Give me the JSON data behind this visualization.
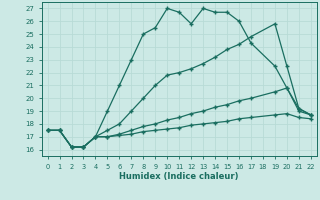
{
  "bg_color": "#cce9e5",
  "grid_color": "#b8dbd6",
  "line_color": "#1a6e60",
  "xlabel": "Humidex (Indice chaleur)",
  "xlim": [
    -0.5,
    22.5
  ],
  "ylim": [
    15.5,
    27.5
  ],
  "xticks": [
    0,
    1,
    2,
    3,
    4,
    5,
    6,
    7,
    8,
    9,
    10,
    11,
    12,
    13,
    14,
    15,
    16,
    17,
    18,
    19,
    20,
    21,
    22
  ],
  "yticks": [
    16,
    17,
    18,
    19,
    20,
    21,
    22,
    23,
    24,
    25,
    26,
    27
  ],
  "lines": [
    {
      "x": [
        0,
        1,
        2,
        3,
        4,
        5,
        6,
        7,
        8,
        9,
        10,
        11,
        12,
        13,
        14,
        15,
        16,
        17,
        19,
        20,
        21,
        22
      ],
      "y": [
        17.5,
        17.5,
        16.2,
        16.2,
        17.0,
        19.0,
        21.0,
        23.0,
        25.0,
        25.5,
        27.0,
        26.7,
        25.8,
        27.0,
        26.7,
        26.7,
        26.0,
        24.3,
        22.5,
        20.8,
        19.0,
        18.7
      ]
    },
    {
      "x": [
        0,
        1,
        2,
        3,
        4,
        5,
        6,
        7,
        8,
        9,
        10,
        11,
        12,
        13,
        14,
        15,
        16,
        17,
        19,
        20,
        21,
        22
      ],
      "y": [
        17.5,
        17.5,
        16.2,
        16.2,
        17.0,
        17.5,
        18.0,
        19.0,
        20.0,
        21.0,
        21.8,
        22.0,
        22.3,
        22.7,
        23.2,
        23.8,
        24.2,
        24.8,
        25.8,
        22.5,
        19.2,
        18.7
      ]
    },
    {
      "x": [
        0,
        1,
        2,
        3,
        4,
        5,
        6,
        7,
        8,
        9,
        10,
        11,
        12,
        13,
        14,
        15,
        16,
        17,
        19,
        20,
        21,
        22
      ],
      "y": [
        17.5,
        17.5,
        16.2,
        16.2,
        17.0,
        17.0,
        17.2,
        17.5,
        17.8,
        18.0,
        18.3,
        18.5,
        18.8,
        19.0,
        19.3,
        19.5,
        19.8,
        20.0,
        20.5,
        20.8,
        19.2,
        18.7
      ]
    },
    {
      "x": [
        0,
        1,
        2,
        3,
        4,
        5,
        6,
        7,
        8,
        9,
        10,
        11,
        12,
        13,
        14,
        15,
        16,
        17,
        19,
        20,
        21,
        22
      ],
      "y": [
        17.5,
        17.5,
        16.2,
        16.2,
        17.0,
        17.0,
        17.1,
        17.2,
        17.4,
        17.5,
        17.6,
        17.7,
        17.9,
        18.0,
        18.1,
        18.2,
        18.4,
        18.5,
        18.7,
        18.8,
        18.5,
        18.4
      ]
    }
  ]
}
